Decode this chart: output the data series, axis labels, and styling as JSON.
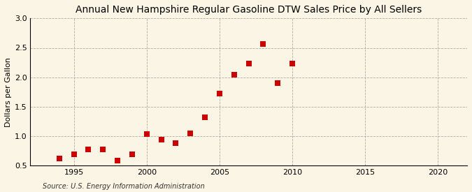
{
  "title": "Annual New Hampshire Regular Gasoline DTW Sales Price by All Sellers",
  "ylabel": "Dollars per Gallon",
  "source": "Source: U.S. Energy Information Administration",
  "background_color": "#faf5e4",
  "years": [
    1994,
    1995,
    1996,
    1997,
    1998,
    1999,
    2000,
    2001,
    2002,
    2003,
    2004,
    2005,
    2006,
    2007,
    2008,
    2009,
    2010
  ],
  "values": [
    0.62,
    0.7,
    0.78,
    0.78,
    0.59,
    0.69,
    1.04,
    0.94,
    0.88,
    1.05,
    1.32,
    1.72,
    2.04,
    2.23,
    2.57,
    1.9,
    2.23
  ],
  "marker_color": "#cc0000",
  "marker_size": 36,
  "xlim": [
    1992,
    2022
  ],
  "ylim": [
    0.5,
    3.0
  ],
  "xticks": [
    1995,
    2000,
    2005,
    2010,
    2015,
    2020
  ],
  "yticks": [
    0.5,
    1.0,
    1.5,
    2.0,
    2.5,
    3.0
  ],
  "grid_color": "#999999",
  "title_fontsize": 10,
  "axis_label_fontsize": 8,
  "tick_fontsize": 8,
  "source_fontsize": 7
}
